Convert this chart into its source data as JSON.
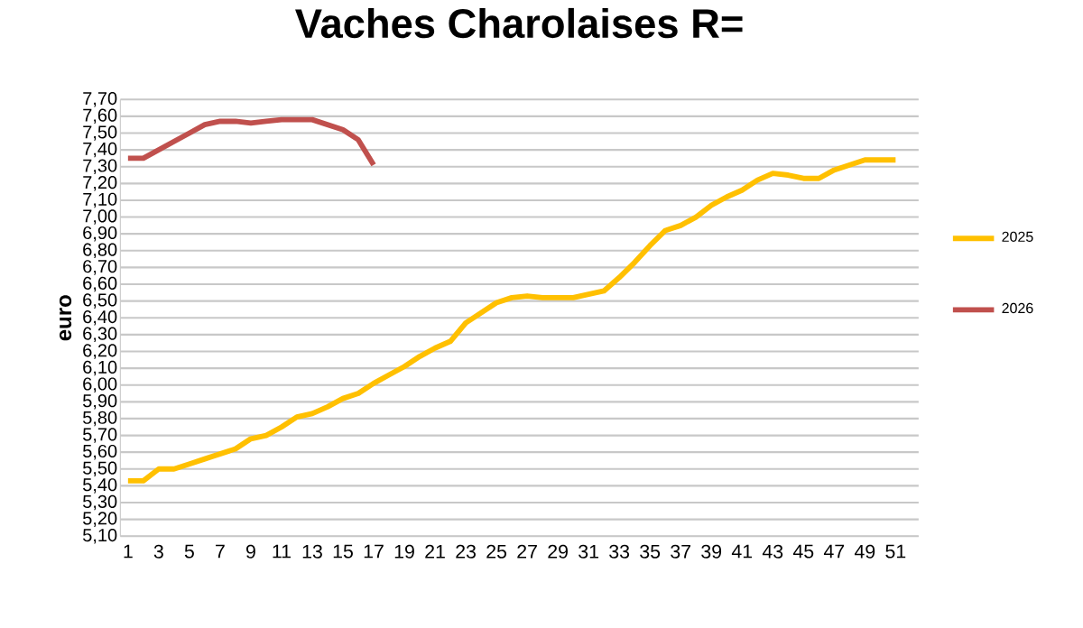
{
  "chart_data": {
    "type": "line",
    "title": "Vaches Charolaises R=",
    "ylabel": "euro",
    "categories": [
      "1",
      null,
      "3",
      null,
      "5",
      null,
      "7",
      null,
      "9",
      null,
      "11",
      null,
      "13",
      null,
      "15",
      null,
      "17",
      null,
      "19",
      null,
      "21",
      null,
      "23",
      null,
      "25",
      null,
      "27",
      null,
      "29",
      null,
      "31",
      null,
      "33",
      null,
      "35",
      null,
      "37",
      null,
      "39",
      null,
      "41",
      null,
      "43",
      null,
      "45",
      null,
      "47",
      null,
      "49",
      null,
      "51",
      null
    ],
    "series": [
      {
        "name": "2025",
        "color": "#ffc000",
        "values": [
          5.43,
          5.43,
          5.5,
          5.5,
          5.53,
          5.56,
          5.59,
          5.62,
          5.68,
          5.7,
          5.75,
          5.81,
          5.83,
          5.87,
          5.92,
          5.95,
          6.01,
          6.06,
          6.11,
          6.17,
          6.22,
          6.26,
          6.37,
          6.43,
          6.49,
          6.52,
          6.53,
          6.52,
          6.52,
          6.52,
          6.54,
          6.56,
          6.64,
          6.73,
          6.83,
          6.92,
          6.95,
          7.0,
          7.07,
          7.12,
          7.16,
          7.22,
          7.26,
          7.25,
          7.23,
          7.23,
          7.28,
          7.31,
          7.34,
          7.34,
          7.34,
          null
        ]
      },
      {
        "name": "2026",
        "color": "#c0504d",
        "values": [
          7.35,
          7.35,
          7.4,
          7.45,
          7.5,
          7.55,
          7.57,
          7.57,
          7.56,
          7.57,
          7.58,
          7.58,
          7.58,
          7.55,
          7.52,
          7.46,
          7.31,
          null,
          null,
          null,
          null,
          null,
          null,
          null,
          null,
          null,
          null,
          null,
          null,
          null,
          null,
          null,
          null,
          null,
          null,
          null,
          null,
          null,
          null,
          null,
          null,
          null,
          null,
          null,
          null,
          null,
          null,
          null,
          null,
          null,
          null,
          null
        ]
      }
    ],
    "ylim": [
      5.1,
      7.7
    ],
    "yticks": [
      {
        "value": 5.1,
        "label": "5,10"
      },
      {
        "value": 5.2,
        "label": "5,20"
      },
      {
        "value": 5.3,
        "label": "5,30"
      },
      {
        "value": 5.4,
        "label": "5,40"
      },
      {
        "value": 5.5,
        "label": "5,50"
      },
      {
        "value": 5.6,
        "label": "5,60"
      },
      {
        "value": 5.7,
        "label": "5,70"
      },
      {
        "value": 5.8,
        "label": "5,80"
      },
      {
        "value": 5.9,
        "label": "5,90"
      },
      {
        "value": 6.0,
        "label": "6,00"
      },
      {
        "value": 6.1,
        "label": "6,10"
      },
      {
        "value": 6.2,
        "label": "6,20"
      },
      {
        "value": 6.3,
        "label": "6,30"
      },
      {
        "value": 6.4,
        "label": "6,40"
      },
      {
        "value": 6.5,
        "label": "6,50"
      },
      {
        "value": 6.6,
        "label": "6,60"
      },
      {
        "value": 6.7,
        "label": "6,70"
      },
      {
        "value": 6.8,
        "label": "6,80"
      },
      {
        "value": 6.9,
        "label": "6,90"
      },
      {
        "value": 7.0,
        "label": "7,00"
      },
      {
        "value": 7.1,
        "label": "7,10"
      },
      {
        "value": 7.2,
        "label": "7,20"
      },
      {
        "value": 7.3,
        "label": "7,30"
      },
      {
        "value": 7.4,
        "label": "7,40"
      },
      {
        "value": 7.5,
        "label": "7,50"
      },
      {
        "value": 7.6,
        "label": "7,60"
      },
      {
        "value": 7.7,
        "label": "7,70"
      }
    ],
    "grid": "y",
    "legend": "right",
    "marker": "none",
    "line_style": "solid"
  }
}
